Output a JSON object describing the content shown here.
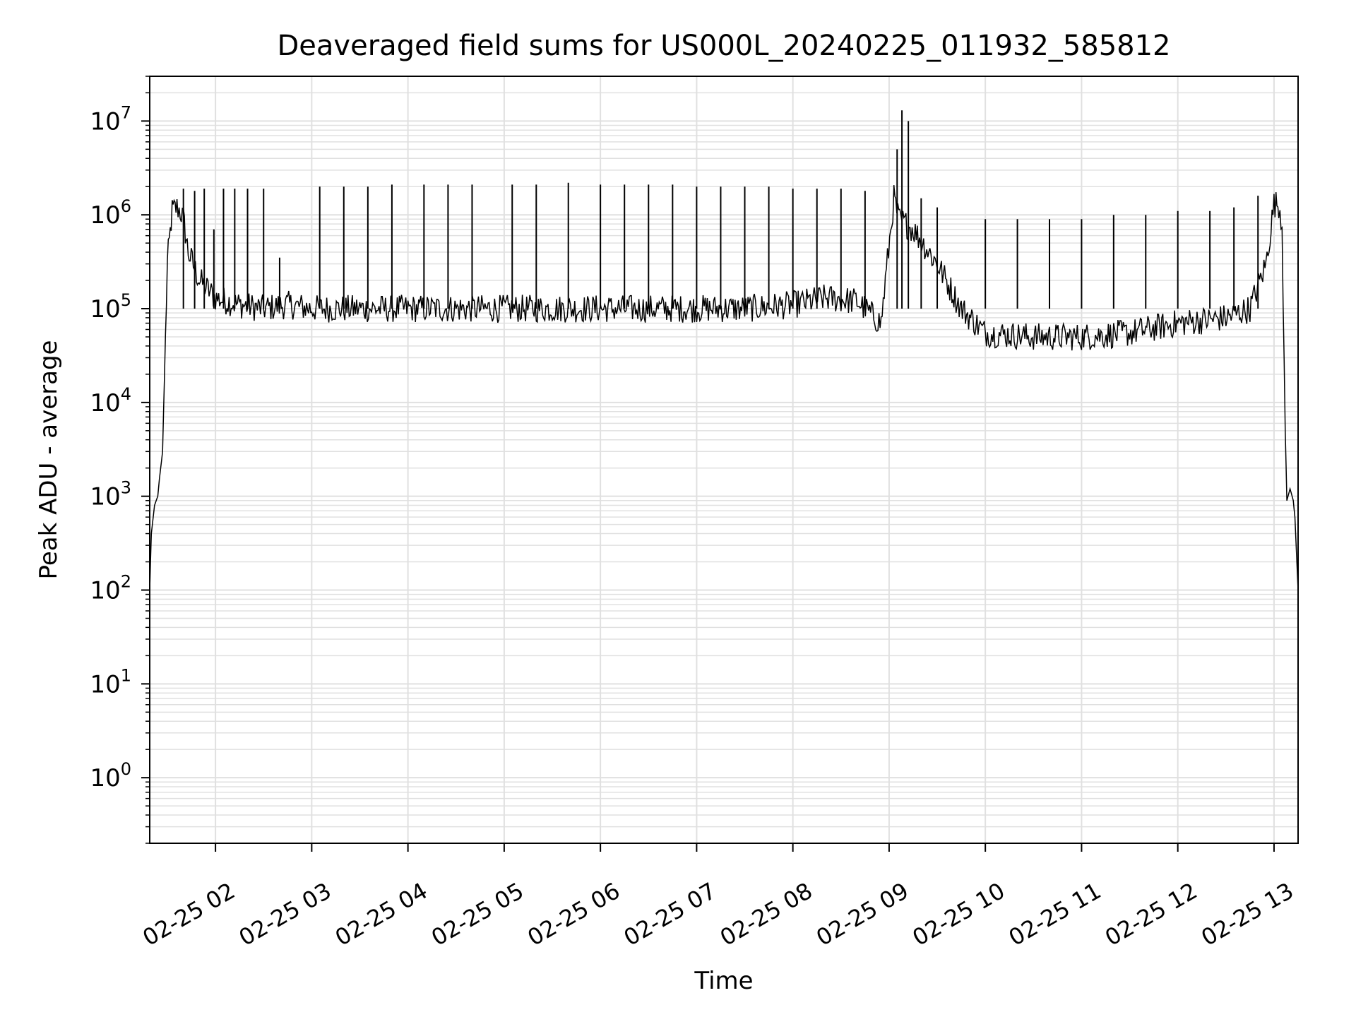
{
  "chart_data": {
    "type": "line",
    "title": "Deaveraged field sums for US000L_20240225_011932_585812",
    "xlabel": "Time",
    "ylabel": "Peak ADU - average",
    "y_scale": "log",
    "grid": true,
    "grid_minor": true,
    "line_color": "#000000",
    "grid_color": "#e0e0e0",
    "xlim": [
      "2024-02-25 01:19",
      "2024-02-25 13:15"
    ],
    "ylim": [
      0.2,
      30000000
    ],
    "x_ticks": [
      {
        "value": "2024-02-25 02:00",
        "label": "02-25 02"
      },
      {
        "value": "2024-02-25 03:00",
        "label": "02-25 03"
      },
      {
        "value": "2024-02-25 04:00",
        "label": "02-25 04"
      },
      {
        "value": "2024-02-25 05:00",
        "label": "02-25 05"
      },
      {
        "value": "2024-02-25 06:00",
        "label": "02-25 06"
      },
      {
        "value": "2024-02-25 07:00",
        "label": "02-25 07"
      },
      {
        "value": "2024-02-25 08:00",
        "label": "02-25 08"
      },
      {
        "value": "2024-02-25 09:00",
        "label": "02-25 09"
      },
      {
        "value": "2024-02-25 10:00",
        "label": "02-25 10"
      },
      {
        "value": "2024-02-25 11:00",
        "label": "02-25 11"
      },
      {
        "value": "2024-02-25 12:00",
        "label": "02-25 12"
      },
      {
        "value": "2024-02-25 13:00",
        "label": "02-25 13"
      }
    ],
    "y_ticks": [
      {
        "value": 1,
        "base": "10",
        "exp": "0"
      },
      {
        "value": 10,
        "base": "10",
        "exp": "1"
      },
      {
        "value": 100,
        "base": "10",
        "exp": "2"
      },
      {
        "value": 1000,
        "base": "10",
        "exp": "3"
      },
      {
        "value": 10000,
        "base": "10",
        "exp": "4"
      },
      {
        "value": 100000,
        "base": "10",
        "exp": "5"
      },
      {
        "value": 1000000,
        "base": "10",
        "exp": "6"
      },
      {
        "value": 10000000,
        "base": "10",
        "exp": "7"
      }
    ],
    "series": [
      {
        "x": [
          "2024-02-25 01:19",
          "2024-02-25 01:20",
          "2024-02-25 01:22",
          "2024-02-25 01:24",
          "2024-02-25 01:25",
          "2024-02-25 01:27",
          "2024-02-25 01:30",
          "2024-02-25 01:33",
          "2024-02-25 01:36",
          "2024-02-25 01:38",
          "2024-02-25 01:40",
          "2024-02-25 01:43",
          "2024-02-25 01:50",
          "2024-02-25 02:00",
          "2024-02-25 02:15",
          "2024-02-25 02:30",
          "2024-02-25 02:45",
          "2024-02-25 03:00",
          "2024-02-25 03:30",
          "2024-02-25 04:00",
          "2024-02-25 04:30",
          "2024-02-25 05:00",
          "2024-02-25 05:30",
          "2024-02-25 06:00",
          "2024-02-25 06:30",
          "2024-02-25 07:00",
          "2024-02-25 07:30",
          "2024-02-25 08:00",
          "2024-02-25 08:20",
          "2024-02-25 08:40",
          "2024-02-25 08:55",
          "2024-02-25 09:03",
          "2024-02-25 09:06",
          "2024-02-25 09:15",
          "2024-02-25 09:30",
          "2024-02-25 09:45",
          "2024-02-25 10:00",
          "2024-02-25 10:30",
          "2024-02-25 11:00",
          "2024-02-25 11:30",
          "2024-02-25 12:00",
          "2024-02-25 12:30",
          "2024-02-25 12:45",
          "2024-02-25 12:55",
          "2024-02-25 13:00",
          "2024-02-25 13:03",
          "2024-02-25 13:05",
          "2024-02-25 13:07",
          "2024-02-25 13:08",
          "2024-02-25 13:10",
          "2024-02-25 13:12",
          "2024-02-25 13:13",
          "2024-02-25 13:15"
        ],
        "y": [
          100,
          400,
          800,
          1000,
          1500,
          3000,
          300000,
          1100000,
          1200000,
          1100000,
          900000,
          400000,
          200000,
          130000,
          110000,
          100000,
          110000,
          100000,
          100000,
          100000,
          100000,
          100000,
          100000,
          100000,
          100000,
          100000,
          100000,
          110000,
          130000,
          120000,
          70000,
          1500000,
          900000,
          700000,
          300000,
          100000,
          55000,
          50000,
          50000,
          55000,
          70000,
          80000,
          100000,
          300000,
          1300000,
          1300000,
          800000,
          5000,
          900,
          1200,
          900,
          600,
          100
        ]
      }
    ],
    "spikes": [
      {
        "x": "2024-02-25 01:40",
        "y": 1900000
      },
      {
        "x": "2024-02-25 01:47",
        "y": 1800000
      },
      {
        "x": "2024-02-25 01:53",
        "y": 1900000
      },
      {
        "x": "2024-02-25 01:59",
        "y": 700000
      },
      {
        "x": "2024-02-25 02:05",
        "y": 1900000
      },
      {
        "x": "2024-02-25 02:12",
        "y": 1900000
      },
      {
        "x": "2024-02-25 02:20",
        "y": 1900000
      },
      {
        "x": "2024-02-25 02:30",
        "y": 1900000
      },
      {
        "x": "2024-02-25 02:40",
        "y": 350000
      },
      {
        "x": "2024-02-25 03:05",
        "y": 2000000
      },
      {
        "x": "2024-02-25 03:20",
        "y": 2000000
      },
      {
        "x": "2024-02-25 03:35",
        "y": 2000000
      },
      {
        "x": "2024-02-25 03:50",
        "y": 2100000
      },
      {
        "x": "2024-02-25 04:10",
        "y": 2100000
      },
      {
        "x": "2024-02-25 04:25",
        "y": 2100000
      },
      {
        "x": "2024-02-25 04:40",
        "y": 2100000
      },
      {
        "x": "2024-02-25 05:05",
        "y": 2100000
      },
      {
        "x": "2024-02-25 05:20",
        "y": 2100000
      },
      {
        "x": "2024-02-25 05:40",
        "y": 2200000
      },
      {
        "x": "2024-02-25 06:00",
        "y": 2100000
      },
      {
        "x": "2024-02-25 06:15",
        "y": 2100000
      },
      {
        "x": "2024-02-25 06:30",
        "y": 2100000
      },
      {
        "x": "2024-02-25 06:45",
        "y": 2100000
      },
      {
        "x": "2024-02-25 07:00",
        "y": 2000000
      },
      {
        "x": "2024-02-25 07:15",
        "y": 2000000
      },
      {
        "x": "2024-02-25 07:30",
        "y": 2000000
      },
      {
        "x": "2024-02-25 07:45",
        "y": 2000000
      },
      {
        "x": "2024-02-25 08:00",
        "y": 1900000
      },
      {
        "x": "2024-02-25 08:15",
        "y": 1900000
      },
      {
        "x": "2024-02-25 08:30",
        "y": 1900000
      },
      {
        "x": "2024-02-25 08:45",
        "y": 1800000
      },
      {
        "x": "2024-02-25 09:05",
        "y": 5000000
      },
      {
        "x": "2024-02-25 09:08",
        "y": 13000000
      },
      {
        "x": "2024-02-25 09:12",
        "y": 10000000
      },
      {
        "x": "2024-02-25 09:20",
        "y": 1500000
      },
      {
        "x": "2024-02-25 09:30",
        "y": 1200000
      },
      {
        "x": "2024-02-25 10:00",
        "y": 900000
      },
      {
        "x": "2024-02-25 10:20",
        "y": 900000
      },
      {
        "x": "2024-02-25 10:40",
        "y": 900000
      },
      {
        "x": "2024-02-25 11:00",
        "y": 900000
      },
      {
        "x": "2024-02-25 11:20",
        "y": 1000000
      },
      {
        "x": "2024-02-25 11:40",
        "y": 1000000
      },
      {
        "x": "2024-02-25 12:00",
        "y": 1100000
      },
      {
        "x": "2024-02-25 12:20",
        "y": 1100000
      },
      {
        "x": "2024-02-25 12:35",
        "y": 1200000
      },
      {
        "x": "2024-02-25 12:50",
        "y": 1600000
      }
    ]
  }
}
